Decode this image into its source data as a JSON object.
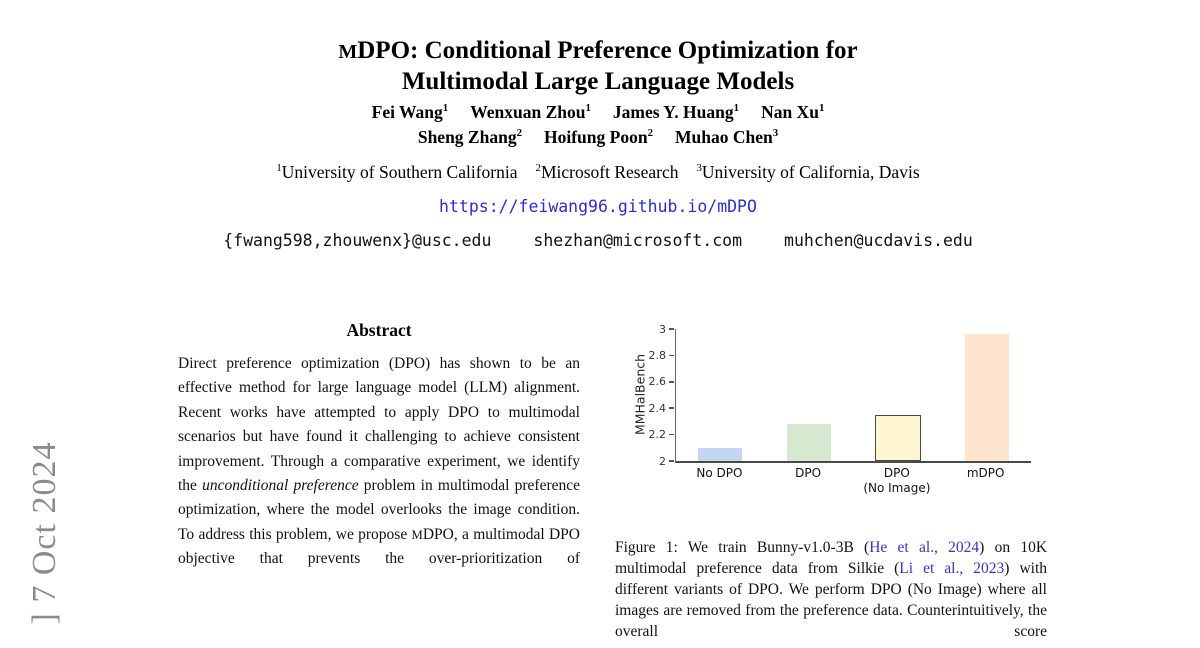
{
  "arxiv_banner": {
    "text": "] 7 Oct 2024",
    "color": "#8b8b8b"
  },
  "title": {
    "smallcap": "M",
    "line1_rest": "DPO: Conditional Preference Optimization for",
    "line2": "Multimodal Large Language Models"
  },
  "authors": {
    "line1": [
      {
        "name": "Fei Wang",
        "sup": "1"
      },
      {
        "name": "Wenxuan Zhou",
        "sup": "1"
      },
      {
        "name": "James Y. Huang",
        "sup": "1"
      },
      {
        "name": "Nan Xu",
        "sup": "1"
      }
    ],
    "line2": [
      {
        "name": "Sheng Zhang",
        "sup": "2"
      },
      {
        "name": "Hoifung Poon",
        "sup": "2"
      },
      {
        "name": "Muhao Chen",
        "sup": "3"
      }
    ]
  },
  "affiliations": [
    {
      "sup": "1",
      "text": "University of Southern California"
    },
    {
      "sup": "2",
      "text": "Microsoft Research"
    },
    {
      "sup": "3",
      "text": "University of California, Davis"
    }
  ],
  "links": {
    "project_url": "https://feiwang96.github.io/mDPO",
    "emails": [
      "{fwang598,zhouwenx}@usc.edu",
      "shezhan@microsoft.com",
      "muhchen@ucdavis.edu"
    ],
    "link_color": "#2c2cd0",
    "citation_color": "#3434cf"
  },
  "abstract": {
    "heading": "Abstract",
    "segments": [
      {
        "style": "normal",
        "text": "Direct preference optimization (DPO) has shown to be an effective method for large language model (LLM) alignment. Recent works have attempted to apply DPO to multimodal scenarios but have found it challenging to achieve consistent improvement. Through a comparative experiment, we identify the "
      },
      {
        "style": "italic",
        "text": "unconditional preference"
      },
      {
        "style": "normal",
        "text": " problem in multimodal preference optimization, where the model overlooks the image condition. To address this problem, we propose "
      },
      {
        "style": "smallcap",
        "text": "M"
      },
      {
        "style": "normal",
        "text": "DPO, a multimodal DPO objective that prevents the over-prioritization of"
      }
    ]
  },
  "figure_caption": {
    "segments": [
      {
        "style": "normal",
        "text": "Figure 1: We train Bunny-v1.0-3B ("
      },
      {
        "style": "link",
        "text": "He et al., 2024"
      },
      {
        "style": "normal",
        "text": ") on 10K multimodal preference data from Silkie ("
      },
      {
        "style": "link",
        "text": "Li et al., 2023"
      },
      {
        "style": "normal",
        "text": ") with different variants of DPO. We perform DPO (No Image) where all images are removed from the preference data. Counterintuitively, the overall score"
      }
    ]
  },
  "chart_data": {
    "type": "bar",
    "categories": [
      "No DPO",
      "DPO",
      "DPO\n(No Image)",
      "mDPO"
    ],
    "values": [
      2.1,
      2.28,
      2.33,
      2.96
    ],
    "title": "",
    "xlabel": "",
    "ylabel": "MMHalBench",
    "ylim": [
      2,
      3
    ],
    "yticks": [
      "2",
      "2.2",
      "2.4",
      "2.6",
      "2.8",
      "3"
    ],
    "grid": false,
    "legend_position": "none",
    "bar_colors": [
      "#c4d7f2",
      "#d6e8d0",
      "#fdf5d0",
      "#fce4cd"
    ],
    "bar_border_colors": [
      null,
      null,
      "#4a4a4a",
      null
    ]
  }
}
